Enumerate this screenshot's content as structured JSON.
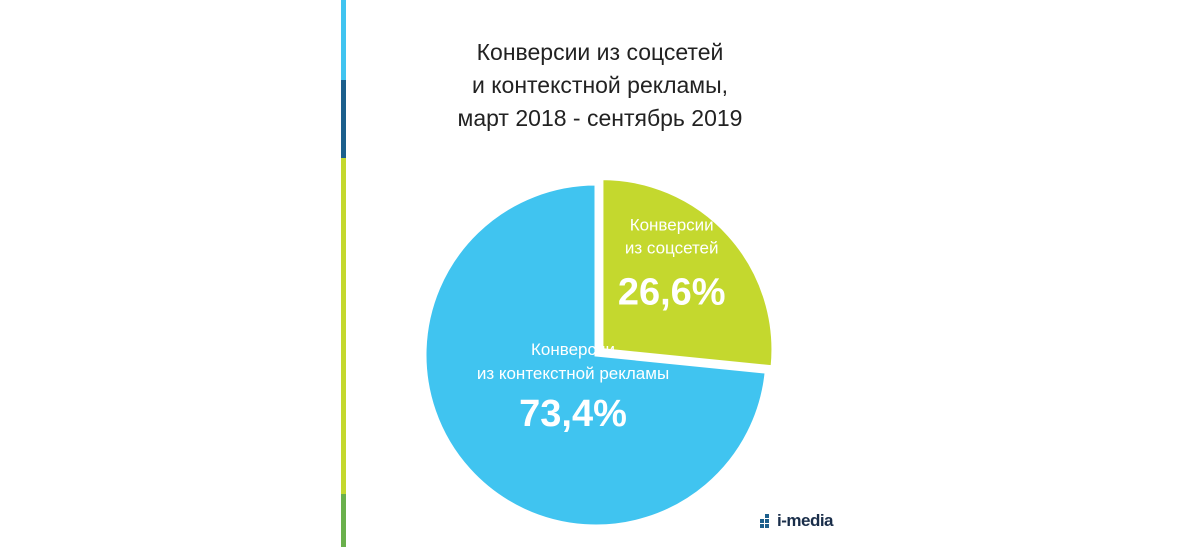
{
  "title": {
    "line1": "Конверсии из соцсетей",
    "line2": "и контекстной рекламы,",
    "line3": "март 2018 - сентябрь 2019"
  },
  "colors": {
    "social": "#c4d82e",
    "context": "#40c4f0",
    "stripe_top": "#40c4f0",
    "stripe_dark": "#1c5f8c",
    "stripe_lime": "#c4d82e",
    "stripe_green": "#6ab04c"
  },
  "logo": {
    "text": "i-media"
  },
  "chart_data": {
    "type": "pie",
    "title": "Конверсии из соцсетей и контекстной рекламы, март 2018 - сентябрь 2019",
    "slices": [
      {
        "name_line1": "Конверсии",
        "name_line2": "из соцсетей",
        "label": "26,6%",
        "value": 26.6,
        "exploded": true
      },
      {
        "name_line1": "Конверсии",
        "name_line2": "из контекстной рекламы",
        "label": "73,4%",
        "value": 73.4,
        "exploded": false
      }
    ]
  }
}
